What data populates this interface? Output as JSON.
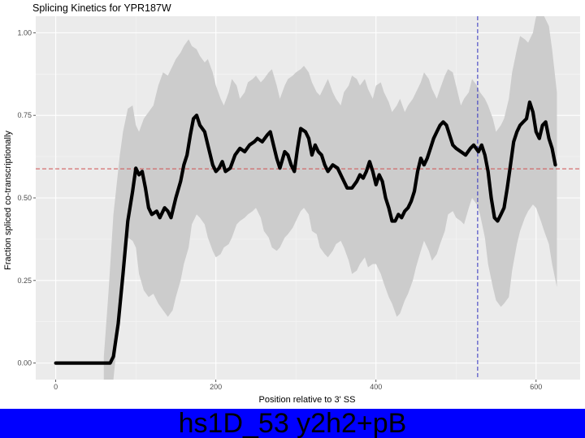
{
  "chart_data": {
    "type": "line",
    "title": "Splicing Kinetics for YPR187W",
    "xlabel": "Position relative to 3' SS",
    "ylabel": "Fraction spliced co-transcriptionally",
    "xlim": [
      -25,
      655
    ],
    "ylim": [
      -0.05,
      1.05
    ],
    "xticks": [
      0,
      200,
      400,
      600
    ],
    "yticks": [
      0.0,
      0.25,
      0.5,
      0.75,
      1.0
    ],
    "ytick_labels": [
      "0.00",
      "0.25",
      "0.50",
      "0.75",
      "1.00"
    ],
    "grid": true,
    "hline": {
      "y": 0.588,
      "color": "#d05050",
      "style": "dashed"
    },
    "vline": {
      "x": 527,
      "color": "#3030c0",
      "style": "dashed"
    },
    "series": [
      {
        "points": [
          [
            0,
            0
          ],
          [
            68,
            0
          ],
          [
            72,
            0.02
          ],
          [
            78,
            0.12
          ],
          [
            84,
            0.27
          ],
          [
            90,
            0.43
          ],
          [
            96,
            0.52
          ],
          [
            100,
            0.59
          ],
          [
            104,
            0.57
          ],
          [
            108,
            0.58
          ],
          [
            112,
            0.53
          ],
          [
            116,
            0.47
          ],
          [
            120,
            0.45
          ],
          [
            126,
            0.46
          ],
          [
            130,
            0.44
          ],
          [
            136,
            0.47
          ],
          [
            140,
            0.46
          ],
          [
            144,
            0.44
          ],
          [
            150,
            0.5
          ],
          [
            156,
            0.55
          ],
          [
            160,
            0.6
          ],
          [
            164,
            0.63
          ],
          [
            168,
            0.69
          ],
          [
            172,
            0.74
          ],
          [
            176,
            0.75
          ],
          [
            180,
            0.72
          ],
          [
            186,
            0.7
          ],
          [
            190,
            0.66
          ],
          [
            196,
            0.6
          ],
          [
            200,
            0.58
          ],
          [
            204,
            0.59
          ],
          [
            208,
            0.61
          ],
          [
            212,
            0.58
          ],
          [
            218,
            0.59
          ],
          [
            224,
            0.63
          ],
          [
            230,
            0.65
          ],
          [
            236,
            0.64
          ],
          [
            242,
            0.66
          ],
          [
            248,
            0.67
          ],
          [
            252,
            0.68
          ],
          [
            258,
            0.67
          ],
          [
            264,
            0.69
          ],
          [
            268,
            0.7
          ],
          [
            272,
            0.66
          ],
          [
            276,
            0.62
          ],
          [
            280,
            0.59
          ],
          [
            286,
            0.64
          ],
          [
            290,
            0.63
          ],
          [
            294,
            0.6
          ],
          [
            298,
            0.58
          ],
          [
            302,
            0.65
          ],
          [
            306,
            0.71
          ],
          [
            312,
            0.7
          ],
          [
            316,
            0.68
          ],
          [
            320,
            0.63
          ],
          [
            324,
            0.66
          ],
          [
            328,
            0.64
          ],
          [
            332,
            0.63
          ],
          [
            336,
            0.6
          ],
          [
            340,
            0.58
          ],
          [
            346,
            0.6
          ],
          [
            352,
            0.59
          ],
          [
            358,
            0.56
          ],
          [
            364,
            0.53
          ],
          [
            370,
            0.53
          ],
          [
            376,
            0.55
          ],
          [
            380,
            0.57
          ],
          [
            384,
            0.56
          ],
          [
            388,
            0.58
          ],
          [
            392,
            0.61
          ],
          [
            396,
            0.58
          ],
          [
            400,
            0.54
          ],
          [
            404,
            0.57
          ],
          [
            408,
            0.55
          ],
          [
            412,
            0.5
          ],
          [
            416,
            0.47
          ],
          [
            420,
            0.43
          ],
          [
            424,
            0.43
          ],
          [
            428,
            0.45
          ],
          [
            432,
            0.44
          ],
          [
            436,
            0.46
          ],
          [
            440,
            0.47
          ],
          [
            444,
            0.49
          ],
          [
            448,
            0.52
          ],
          [
            452,
            0.58
          ],
          [
            456,
            0.62
          ],
          [
            460,
            0.6
          ],
          [
            464,
            0.62
          ],
          [
            468,
            0.65
          ],
          [
            472,
            0.68
          ],
          [
            476,
            0.7
          ],
          [
            480,
            0.72
          ],
          [
            484,
            0.73
          ],
          [
            488,
            0.72
          ],
          [
            492,
            0.69
          ],
          [
            496,
            0.66
          ],
          [
            500,
            0.65
          ],
          [
            506,
            0.64
          ],
          [
            512,
            0.63
          ],
          [
            518,
            0.65
          ],
          [
            522,
            0.66
          ],
          [
            528,
            0.64
          ],
          [
            532,
            0.66
          ],
          [
            536,
            0.63
          ],
          [
            540,
            0.58
          ],
          [
            544,
            0.5
          ],
          [
            548,
            0.44
          ],
          [
            552,
            0.43
          ],
          [
            556,
            0.45
          ],
          [
            560,
            0.47
          ],
          [
            564,
            0.53
          ],
          [
            568,
            0.6
          ],
          [
            572,
            0.67
          ],
          [
            576,
            0.7
          ],
          [
            580,
            0.72
          ],
          [
            584,
            0.73
          ],
          [
            588,
            0.74
          ],
          [
            592,
            0.79
          ],
          [
            596,
            0.76
          ],
          [
            600,
            0.7
          ],
          [
            604,
            0.68
          ],
          [
            608,
            0.72
          ],
          [
            612,
            0.73
          ],
          [
            616,
            0.68
          ],
          [
            620,
            0.65
          ],
          [
            624,
            0.6
          ]
        ],
        "color": "#000000"
      }
    ],
    "band": {
      "x": [
        60,
        66,
        72,
        80,
        84,
        90,
        96,
        100,
        104,
        110,
        116,
        122,
        128,
        134,
        140,
        146,
        150,
        156,
        160,
        166,
        170,
        176,
        180,
        186,
        190,
        196,
        200,
        206,
        210,
        216,
        220,
        226,
        230,
        236,
        240,
        246,
        250,
        256,
        260,
        266,
        270,
        276,
        280,
        286,
        290,
        296,
        300,
        306,
        310,
        316,
        320,
        326,
        330,
        336,
        340,
        346,
        350,
        356,
        360,
        366,
        370,
        376,
        380,
        386,
        390,
        396,
        400,
        406,
        410,
        416,
        420,
        426,
        430,
        436,
        440,
        446,
        450,
        456,
        460,
        466,
        470,
        476,
        480,
        486,
        490,
        496,
        500,
        506,
        510,
        516,
        520,
        526,
        530,
        536,
        540,
        546,
        550,
        556,
        560,
        566,
        570,
        576,
        580,
        586,
        590,
        596,
        600,
        606,
        610,
        616,
        620,
        626
      ],
      "upper": [
        0.02,
        0.22,
        0.45,
        0.63,
        0.7,
        0.77,
        0.78,
        0.72,
        0.7,
        0.74,
        0.76,
        0.78,
        0.84,
        0.88,
        0.87,
        0.9,
        0.92,
        0.94,
        0.96,
        0.98,
        0.96,
        0.95,
        0.93,
        0.91,
        0.92,
        0.88,
        0.84,
        0.8,
        0.78,
        0.82,
        0.86,
        0.84,
        0.8,
        0.82,
        0.85,
        0.86,
        0.87,
        0.85,
        0.86,
        0.88,
        0.89,
        0.84,
        0.8,
        0.84,
        0.86,
        0.87,
        0.88,
        0.89,
        0.9,
        0.88,
        0.85,
        0.82,
        0.81,
        0.84,
        0.86,
        0.82,
        0.8,
        0.78,
        0.82,
        0.84,
        0.87,
        0.86,
        0.84,
        0.86,
        0.83,
        0.8,
        0.84,
        0.85,
        0.82,
        0.79,
        0.76,
        0.78,
        0.8,
        0.76,
        0.78,
        0.8,
        0.82,
        0.85,
        0.88,
        0.86,
        0.83,
        0.8,
        0.83,
        0.87,
        0.89,
        0.88,
        0.84,
        0.78,
        0.8,
        0.82,
        0.86,
        0.84,
        0.82,
        0.8,
        0.78,
        0.74,
        0.7,
        0.72,
        0.74,
        0.8,
        0.88,
        0.95,
        0.99,
        0.98,
        0.97,
        1.0,
        1.05,
        1.07,
        1.05,
        1.02,
        0.95,
        0.82
      ],
      "lower": [
        -0.08,
        -0.07,
        -0.05,
        0.15,
        0.28,
        0.38,
        0.37,
        0.35,
        0.27,
        0.22,
        0.2,
        0.21,
        0.18,
        0.16,
        0.14,
        0.16,
        0.2,
        0.25,
        0.3,
        0.35,
        0.42,
        0.45,
        0.44,
        0.42,
        0.38,
        0.34,
        0.32,
        0.33,
        0.35,
        0.36,
        0.38,
        0.42,
        0.43,
        0.44,
        0.45,
        0.46,
        0.47,
        0.44,
        0.4,
        0.38,
        0.35,
        0.34,
        0.35,
        0.38,
        0.39,
        0.41,
        0.43,
        0.46,
        0.47,
        0.45,
        0.4,
        0.39,
        0.35,
        0.33,
        0.32,
        0.34,
        0.36,
        0.37,
        0.35,
        0.31,
        0.27,
        0.28,
        0.3,
        0.32,
        0.29,
        0.3,
        0.3,
        0.27,
        0.24,
        0.2,
        0.18,
        0.14,
        0.15,
        0.19,
        0.21,
        0.25,
        0.29,
        0.34,
        0.37,
        0.34,
        0.31,
        0.33,
        0.36,
        0.4,
        0.45,
        0.46,
        0.44,
        0.43,
        0.42,
        0.47,
        0.5,
        0.48,
        0.45,
        0.38,
        0.3,
        0.23,
        0.19,
        0.17,
        0.18,
        0.2,
        0.28,
        0.36,
        0.4,
        0.44,
        0.46,
        0.48,
        0.47,
        0.43,
        0.4,
        0.36,
        0.3,
        0.23
      ]
    },
    "band_color": "#cccccc",
    "line_color": "#000000",
    "panel_background": "#ebebeb"
  },
  "banner": {
    "text": "hs1D_53 y2h2+pB",
    "background": "#0000ff"
  }
}
